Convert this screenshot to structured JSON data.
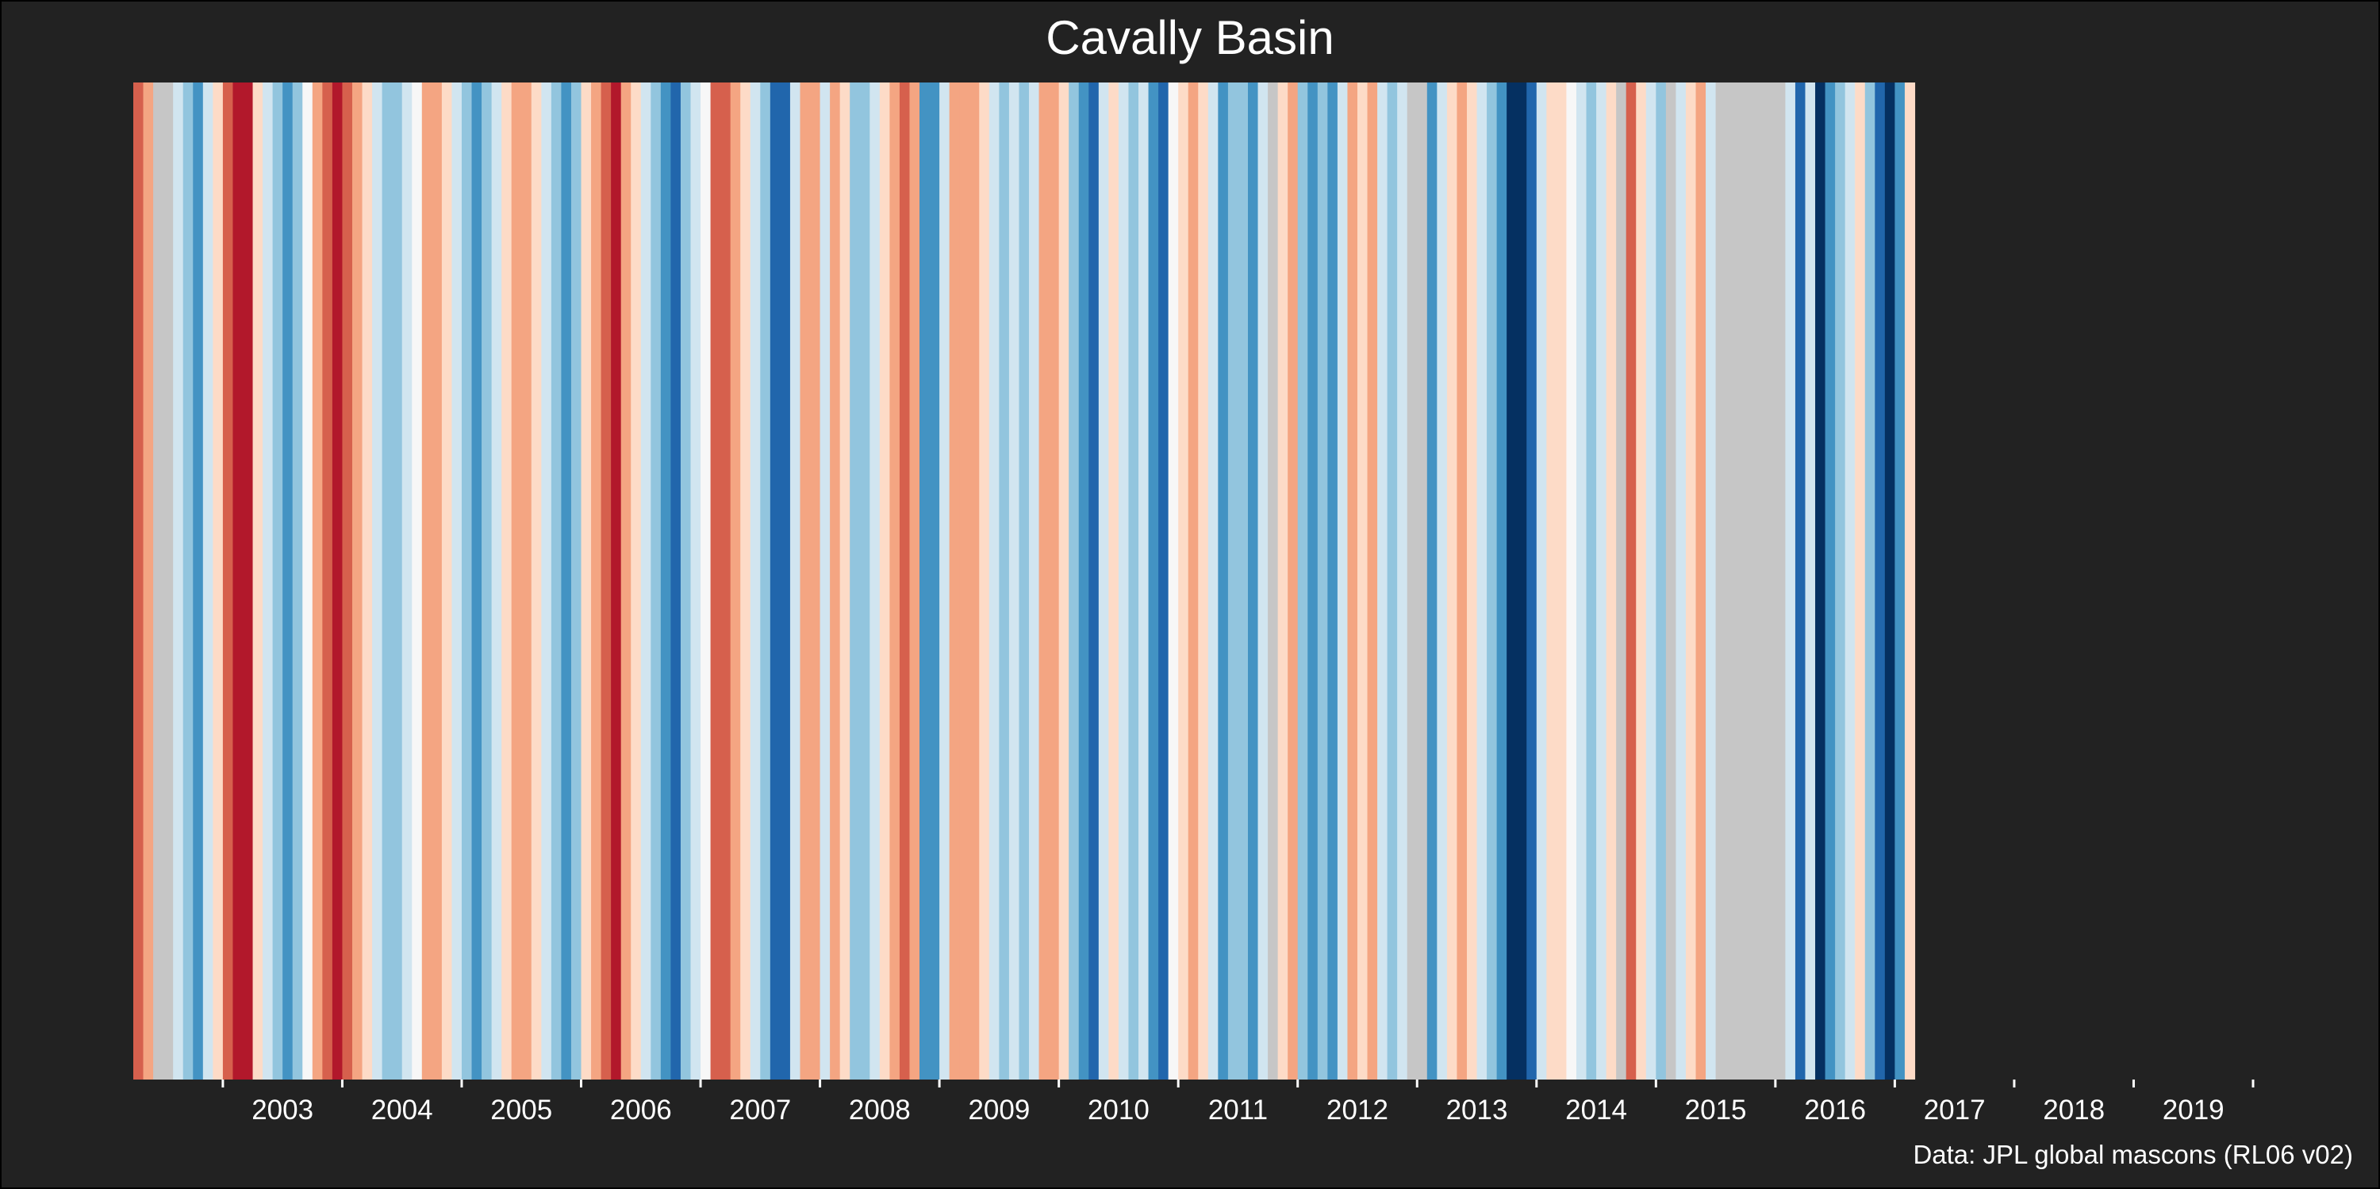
{
  "chart_data": {
    "type": "heatmap",
    "title": "Cavally Basin",
    "source": "Data: JPL global mascons (RL06 v02)",
    "xlabel": "",
    "ylabel": "",
    "x_start": "2002-04",
    "x_end": "2020-01",
    "tick_labels": [
      "2003",
      "2004",
      "2005",
      "2006",
      "2007",
      "2008",
      "2009",
      "2010",
      "2011",
      "2012",
      "2013",
      "2014",
      "2015",
      "2016",
      "2017",
      "2018",
      "2019"
    ],
    "stripes": [
      {
        "start": "2002-04",
        "end": "2002-05",
        "color": "#d6604d"
      },
      {
        "start": "2002-05",
        "end": "2002-06",
        "color": "#f4a582"
      },
      {
        "start": "2002-06",
        "end": "2002-08",
        "color": "#c6c6c6"
      },
      {
        "start": "2002-08",
        "end": "2002-09",
        "color": "#d1e5f0"
      },
      {
        "start": "2002-09",
        "end": "2002-10",
        "color": "#92c5de"
      },
      {
        "start": "2002-10",
        "end": "2002-11",
        "color": "#4393c3"
      },
      {
        "start": "2002-11",
        "end": "2002-12",
        "color": "#d1e5f0"
      },
      {
        "start": "2002-12",
        "end": "2003-01",
        "color": "#fddbc7"
      },
      {
        "start": "2003-01",
        "end": "2003-02",
        "color": "#d6604d"
      },
      {
        "start": "2003-02",
        "end": "2003-04",
        "color": "#b2182b"
      },
      {
        "start": "2003-04",
        "end": "2003-05",
        "color": "#fddbc7"
      },
      {
        "start": "2003-05",
        "end": "2003-06",
        "color": "#d1e5f0"
      },
      {
        "start": "2003-06",
        "end": "2003-07",
        "color": "#92c5de"
      },
      {
        "start": "2003-07",
        "end": "2003-08",
        "color": "#4393c3"
      },
      {
        "start": "2003-08",
        "end": "2003-09",
        "color": "#92c5de"
      },
      {
        "start": "2003-09",
        "end": "2003-10",
        "color": "#f7f7f7"
      },
      {
        "start": "2003-10",
        "end": "2003-11",
        "color": "#f4a582"
      },
      {
        "start": "2003-11",
        "end": "2003-12",
        "color": "#d6604d"
      },
      {
        "start": "2003-12",
        "end": "2004-01",
        "color": "#b2182b"
      },
      {
        "start": "2004-01",
        "end": "2004-02",
        "color": "#d6604d"
      },
      {
        "start": "2004-02",
        "end": "2004-03",
        "color": "#f4a582"
      },
      {
        "start": "2004-03",
        "end": "2004-04",
        "color": "#fddbc7"
      },
      {
        "start": "2004-04",
        "end": "2004-05",
        "color": "#d1e5f0"
      },
      {
        "start": "2004-05",
        "end": "2004-07",
        "color": "#92c5de"
      },
      {
        "start": "2004-07",
        "end": "2004-08",
        "color": "#d1e5f0"
      },
      {
        "start": "2004-08",
        "end": "2004-09",
        "color": "#f7f7f7"
      },
      {
        "start": "2004-09",
        "end": "2004-11",
        "color": "#f4a582"
      },
      {
        "start": "2004-11",
        "end": "2004-12",
        "color": "#fddbc7"
      },
      {
        "start": "2004-12",
        "end": "2005-01",
        "color": "#d1e5f0"
      },
      {
        "start": "2005-01",
        "end": "2005-02",
        "color": "#92c5de"
      },
      {
        "start": "2005-02",
        "end": "2005-03",
        "color": "#4393c3"
      },
      {
        "start": "2005-03",
        "end": "2005-04",
        "color": "#92c5de"
      },
      {
        "start": "2005-04",
        "end": "2005-05",
        "color": "#d1e5f0"
      },
      {
        "start": "2005-05",
        "end": "2005-06",
        "color": "#fddbc7"
      },
      {
        "start": "2005-06",
        "end": "2005-08",
        "color": "#f4a582"
      },
      {
        "start": "2005-08",
        "end": "2005-09",
        "color": "#fddbc7"
      },
      {
        "start": "2005-09",
        "end": "2005-10",
        "color": "#d1e5f0"
      },
      {
        "start": "2005-10",
        "end": "2005-11",
        "color": "#92c5de"
      },
      {
        "start": "2005-11",
        "end": "2005-12",
        "color": "#4393c3"
      },
      {
        "start": "2005-12",
        "end": "2006-01",
        "color": "#92c5de"
      },
      {
        "start": "2006-01",
        "end": "2006-02",
        "color": "#fddbc7"
      },
      {
        "start": "2006-02",
        "end": "2006-03",
        "color": "#f4a582"
      },
      {
        "start": "2006-03",
        "end": "2006-04",
        "color": "#d6604d"
      },
      {
        "start": "2006-04",
        "end": "2006-05",
        "color": "#b2182b"
      },
      {
        "start": "2006-05",
        "end": "2006-06",
        "color": "#f4a582"
      },
      {
        "start": "2006-06",
        "end": "2006-07",
        "color": "#fddbc7"
      },
      {
        "start": "2006-07",
        "end": "2006-08",
        "color": "#d1e5f0"
      },
      {
        "start": "2006-08",
        "end": "2006-09",
        "color": "#92c5de"
      },
      {
        "start": "2006-09",
        "end": "2006-10",
        "color": "#4393c3"
      },
      {
        "start": "2006-10",
        "end": "2006-11",
        "color": "#2166ac"
      },
      {
        "start": "2006-11",
        "end": "2006-12",
        "color": "#92c5de"
      },
      {
        "start": "2006-12",
        "end": "2007-01",
        "color": "#d1e5f0"
      },
      {
        "start": "2007-01",
        "end": "2007-02",
        "color": "#f7f7f7"
      },
      {
        "start": "2007-02",
        "end": "2007-04",
        "color": "#d6604d"
      },
      {
        "start": "2007-04",
        "end": "2007-05",
        "color": "#f4a582"
      },
      {
        "start": "2007-05",
        "end": "2007-06",
        "color": "#fddbc7"
      },
      {
        "start": "2007-06",
        "end": "2007-07",
        "color": "#d1e5f0"
      },
      {
        "start": "2007-07",
        "end": "2007-08",
        "color": "#92c5de"
      },
      {
        "start": "2007-08",
        "end": "2007-10",
        "color": "#2166ac"
      },
      {
        "start": "2007-10",
        "end": "2007-11",
        "color": "#d1e5f0"
      },
      {
        "start": "2007-11",
        "end": "2008-01",
        "color": "#f4a582"
      },
      {
        "start": "2008-01",
        "end": "2008-02",
        "color": "#d1e5f0"
      },
      {
        "start": "2008-02",
        "end": "2008-03",
        "color": "#f4a582"
      },
      {
        "start": "2008-03",
        "end": "2008-04",
        "color": "#fddbc7"
      },
      {
        "start": "2008-04",
        "end": "2008-06",
        "color": "#92c5de"
      },
      {
        "start": "2008-06",
        "end": "2008-07",
        "color": "#d1e5f0"
      },
      {
        "start": "2008-07",
        "end": "2008-08",
        "color": "#fddbc7"
      },
      {
        "start": "2008-08",
        "end": "2008-09",
        "color": "#f4a582"
      },
      {
        "start": "2008-09",
        "end": "2008-10",
        "color": "#d6604d"
      },
      {
        "start": "2008-10",
        "end": "2008-11",
        "color": "#f4a582"
      },
      {
        "start": "2008-11",
        "end": "2009-01",
        "color": "#4393c3"
      },
      {
        "start": "2009-01",
        "end": "2009-02",
        "color": "#d1e5f0"
      },
      {
        "start": "2009-02",
        "end": "2009-03",
        "color": "#f4a582"
      },
      {
        "start": "2009-03",
        "end": "2009-05",
        "color": "#f4a582"
      },
      {
        "start": "2009-05",
        "end": "2009-06",
        "color": "#fddbc7"
      },
      {
        "start": "2009-06",
        "end": "2009-07",
        "color": "#d1e5f0"
      },
      {
        "start": "2009-07",
        "end": "2009-08",
        "color": "#92c5de"
      },
      {
        "start": "2009-08",
        "end": "2009-09",
        "color": "#d1e5f0"
      },
      {
        "start": "2009-09",
        "end": "2009-10",
        "color": "#92c5de"
      },
      {
        "start": "2009-10",
        "end": "2009-11",
        "color": "#d1e5f0"
      },
      {
        "start": "2009-11",
        "end": "2010-01",
        "color": "#f4a582"
      },
      {
        "start": "2010-01",
        "end": "2010-02",
        "color": "#fddbc7"
      },
      {
        "start": "2010-02",
        "end": "2010-03",
        "color": "#92c5de"
      },
      {
        "start": "2010-03",
        "end": "2010-04",
        "color": "#4393c3"
      },
      {
        "start": "2010-04",
        "end": "2010-05",
        "color": "#2166ac"
      },
      {
        "start": "2010-05",
        "end": "2010-06",
        "color": "#d1e5f0"
      },
      {
        "start": "2010-06",
        "end": "2010-07",
        "color": "#fddbc7"
      },
      {
        "start": "2010-07",
        "end": "2010-08",
        "color": "#d1e5f0"
      },
      {
        "start": "2010-08",
        "end": "2010-09",
        "color": "#92c5de"
      },
      {
        "start": "2010-09",
        "end": "2010-10",
        "color": "#d1e5f0"
      },
      {
        "start": "2010-10",
        "end": "2010-11",
        "color": "#4393c3"
      },
      {
        "start": "2010-11",
        "end": "2010-12",
        "color": "#2166ac"
      },
      {
        "start": "2010-12",
        "end": "2011-01",
        "color": "#f7f7f7"
      },
      {
        "start": "2011-01",
        "end": "2011-02",
        "color": "#fddbc7"
      },
      {
        "start": "2011-02",
        "end": "2011-03",
        "color": "#f4a582"
      },
      {
        "start": "2011-03",
        "end": "2011-04",
        "color": "#fddbc7"
      },
      {
        "start": "2011-04",
        "end": "2011-05",
        "color": "#d1e5f0"
      },
      {
        "start": "2011-05",
        "end": "2011-06",
        "color": "#4393c3"
      },
      {
        "start": "2011-06",
        "end": "2011-07",
        "color": "#92c5de"
      },
      {
        "start": "2011-07",
        "end": "2011-08",
        "color": "#92c5de"
      },
      {
        "start": "2011-08",
        "end": "2011-09",
        "color": "#4393c3"
      },
      {
        "start": "2011-09",
        "end": "2011-10",
        "color": "#d1e5f0"
      },
      {
        "start": "2011-10",
        "end": "2011-11",
        "color": "#c6c6c6"
      },
      {
        "start": "2011-11",
        "end": "2011-12",
        "color": "#fddbc7"
      },
      {
        "start": "2011-12",
        "end": "2012-01",
        "color": "#f4a582"
      },
      {
        "start": "2012-01",
        "end": "2012-02",
        "color": "#92c5de"
      },
      {
        "start": "2012-02",
        "end": "2012-03",
        "color": "#4393c3"
      },
      {
        "start": "2012-03",
        "end": "2012-04",
        "color": "#92c5de"
      },
      {
        "start": "2012-04",
        "end": "2012-05",
        "color": "#4393c3"
      },
      {
        "start": "2012-05",
        "end": "2012-06",
        "color": "#d1e5f0"
      },
      {
        "start": "2012-06",
        "end": "2012-07",
        "color": "#f4a582"
      },
      {
        "start": "2012-07",
        "end": "2012-08",
        "color": "#fddbc7"
      },
      {
        "start": "2012-08",
        "end": "2012-09",
        "color": "#f4a582"
      },
      {
        "start": "2012-09",
        "end": "2012-10",
        "color": "#d1e5f0"
      },
      {
        "start": "2012-10",
        "end": "2012-11",
        "color": "#92c5de"
      },
      {
        "start": "2012-11",
        "end": "2012-12",
        "color": "#d1e5f0"
      },
      {
        "start": "2012-12",
        "end": "2013-02",
        "color": "#c6c6c6"
      },
      {
        "start": "2013-02",
        "end": "2013-03",
        "color": "#4393c3"
      },
      {
        "start": "2013-03",
        "end": "2013-04",
        "color": "#d1e5f0"
      },
      {
        "start": "2013-04",
        "end": "2013-05",
        "color": "#fddbc7"
      },
      {
        "start": "2013-05",
        "end": "2013-06",
        "color": "#f4a582"
      },
      {
        "start": "2013-06",
        "end": "2013-07",
        "color": "#fddbc7"
      },
      {
        "start": "2013-07",
        "end": "2013-08",
        "color": "#d1e5f0"
      },
      {
        "start": "2013-08",
        "end": "2013-09",
        "color": "#92c5de"
      },
      {
        "start": "2013-09",
        "end": "2013-10",
        "color": "#4393c3"
      },
      {
        "start": "2013-10",
        "end": "2013-12",
        "color": "#053061"
      },
      {
        "start": "2013-12",
        "end": "2014-01",
        "color": "#2166ac"
      },
      {
        "start": "2014-01",
        "end": "2014-02",
        "color": "#d1e5f0"
      },
      {
        "start": "2014-02",
        "end": "2014-04",
        "color": "#fddbc7"
      },
      {
        "start": "2014-04",
        "end": "2014-05",
        "color": "#f7f7f7"
      },
      {
        "start": "2014-05",
        "end": "2014-06",
        "color": "#d1e5f0"
      },
      {
        "start": "2014-06",
        "end": "2014-07",
        "color": "#92c5de"
      },
      {
        "start": "2014-07",
        "end": "2014-08",
        "color": "#d1e5f0"
      },
      {
        "start": "2014-08",
        "end": "2014-09",
        "color": "#fddbc7"
      },
      {
        "start": "2014-09",
        "end": "2014-10",
        "color": "#c6c6c6"
      },
      {
        "start": "2014-10",
        "end": "2014-11",
        "color": "#d6604d"
      },
      {
        "start": "2014-11",
        "end": "2014-12",
        "color": "#fddbc7"
      },
      {
        "start": "2014-12",
        "end": "2015-01",
        "color": "#d1e5f0"
      },
      {
        "start": "2015-01",
        "end": "2015-02",
        "color": "#92c5de"
      },
      {
        "start": "2015-02",
        "end": "2015-03",
        "color": "#c6c6c6"
      },
      {
        "start": "2015-03",
        "end": "2015-04",
        "color": "#d1e5f0"
      },
      {
        "start": "2015-04",
        "end": "2015-05",
        "color": "#fddbc7"
      },
      {
        "start": "2015-05",
        "end": "2015-06",
        "color": "#f4a582"
      },
      {
        "start": "2015-06",
        "end": "2015-07",
        "color": "#d1e5f0"
      },
      {
        "start": "2015-07",
        "end": "2016-02",
        "color": "#c6c6c6"
      },
      {
        "start": "2016-02",
        "end": "2016-03",
        "color": "#d1e5f0"
      },
      {
        "start": "2016-03",
        "end": "2016-04",
        "color": "#2166ac"
      },
      {
        "start": "2016-04",
        "end": "2016-05",
        "color": "#d1e5f0"
      },
      {
        "start": "2016-05",
        "end": "2016-06",
        "color": "#053061"
      },
      {
        "start": "2016-06",
        "end": "2016-07",
        "color": "#4393c3"
      },
      {
        "start": "2016-07",
        "end": "2016-08",
        "color": "#92c5de"
      },
      {
        "start": "2016-08",
        "end": "2016-09",
        "color": "#d1e5f0"
      },
      {
        "start": "2016-09",
        "end": "2016-10",
        "color": "#fddbc7"
      },
      {
        "start": "2016-10",
        "end": "2016-11",
        "color": "#92c5de"
      },
      {
        "start": "2016-11",
        "end": "2016-12",
        "color": "#2166ac"
      },
      {
        "start": "2016-12",
        "end": "2017-01",
        "color": "#053061"
      },
      {
        "start": "2017-01",
        "end": "2017-02",
        "color": "#4393c3"
      },
      {
        "start": "2017-02",
        "end": "2017-03",
        "color": "#fddbc7"
      }
    ],
    "legend": "none",
    "grid": false,
    "colors": {
      "background": "#222222",
      "missing": "#c6c6c6",
      "text": "#ffffff"
    }
  }
}
